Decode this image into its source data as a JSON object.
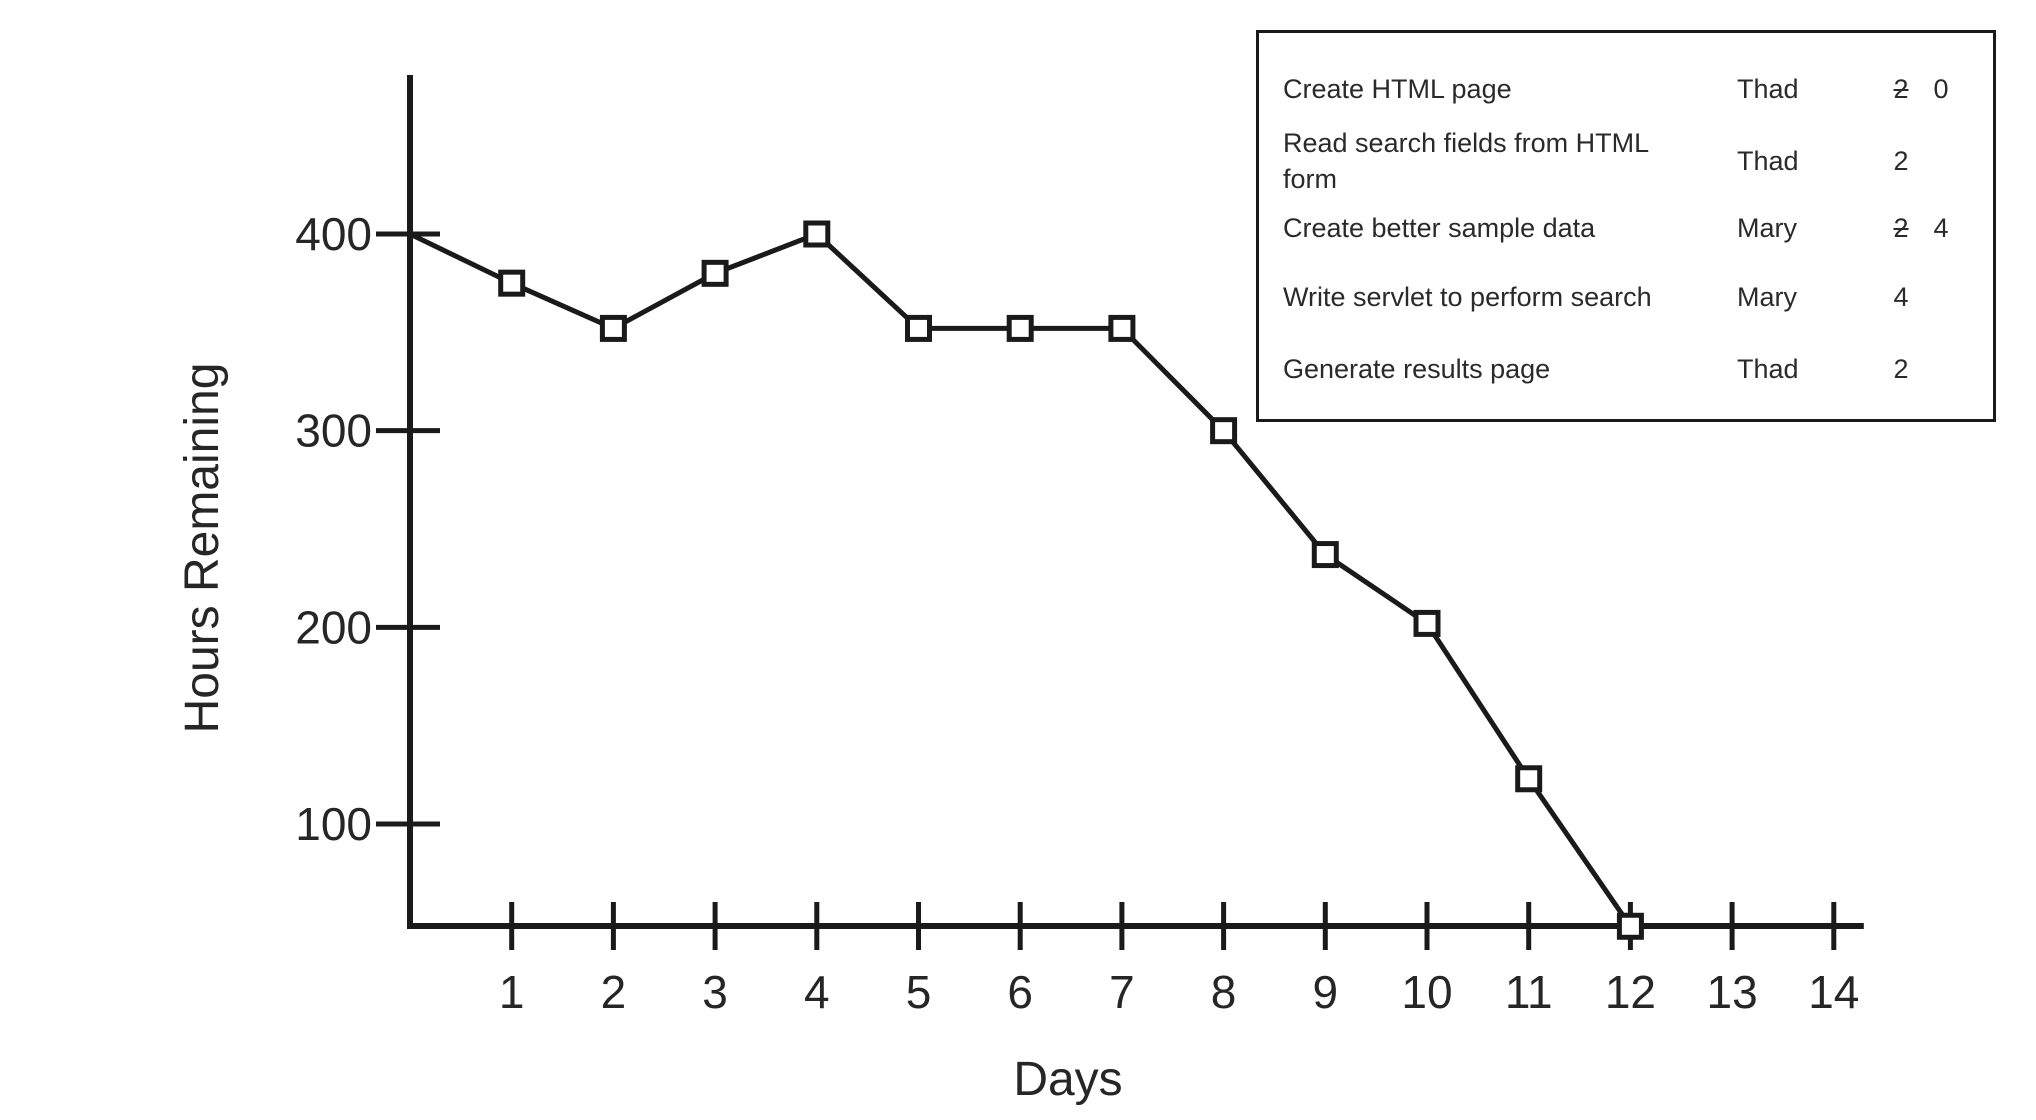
{
  "chart_data": {
    "type": "line",
    "xlabel": "Days",
    "ylabel": "Hours Remaining",
    "x_ticks": [
      1,
      2,
      3,
      4,
      5,
      6,
      7,
      8,
      9,
      10,
      11,
      12,
      13,
      14
    ],
    "y_ticks": [
      100,
      200,
      300,
      400
    ],
    "xlim": [
      0,
      14
    ],
    "ylim": [
      50,
      480
    ],
    "grid": false,
    "marker": "square",
    "series": [
      {
        "x": [
          0,
          1,
          2,
          3,
          4,
          5,
          6,
          7,
          8,
          9,
          10,
          11,
          12
        ],
        "values": [
          400,
          375,
          352,
          380,
          400,
          352,
          352,
          352,
          300,
          237,
          202,
          123,
          48
        ]
      }
    ]
  },
  "task_table": {
    "rows": [
      {
        "task": "Create HTML page",
        "owner": "Thad",
        "estimate": "2",
        "estimate_struck": true,
        "revised": "0"
      },
      {
        "task": "Read search fields from HTML form",
        "owner": "Thad",
        "estimate": "2",
        "estimate_struck": false,
        "revised": ""
      },
      {
        "task": "Create better sample data",
        "owner": "Mary",
        "estimate": "2",
        "estimate_struck": true,
        "revised": "4"
      },
      {
        "task": "Write servlet to perform search",
        "owner": "Mary",
        "estimate": "4",
        "estimate_struck": false,
        "revised": ""
      },
      {
        "task": "Generate results page",
        "owner": "Thad",
        "estimate": "2",
        "estimate_struck": false,
        "revised": ""
      }
    ]
  }
}
